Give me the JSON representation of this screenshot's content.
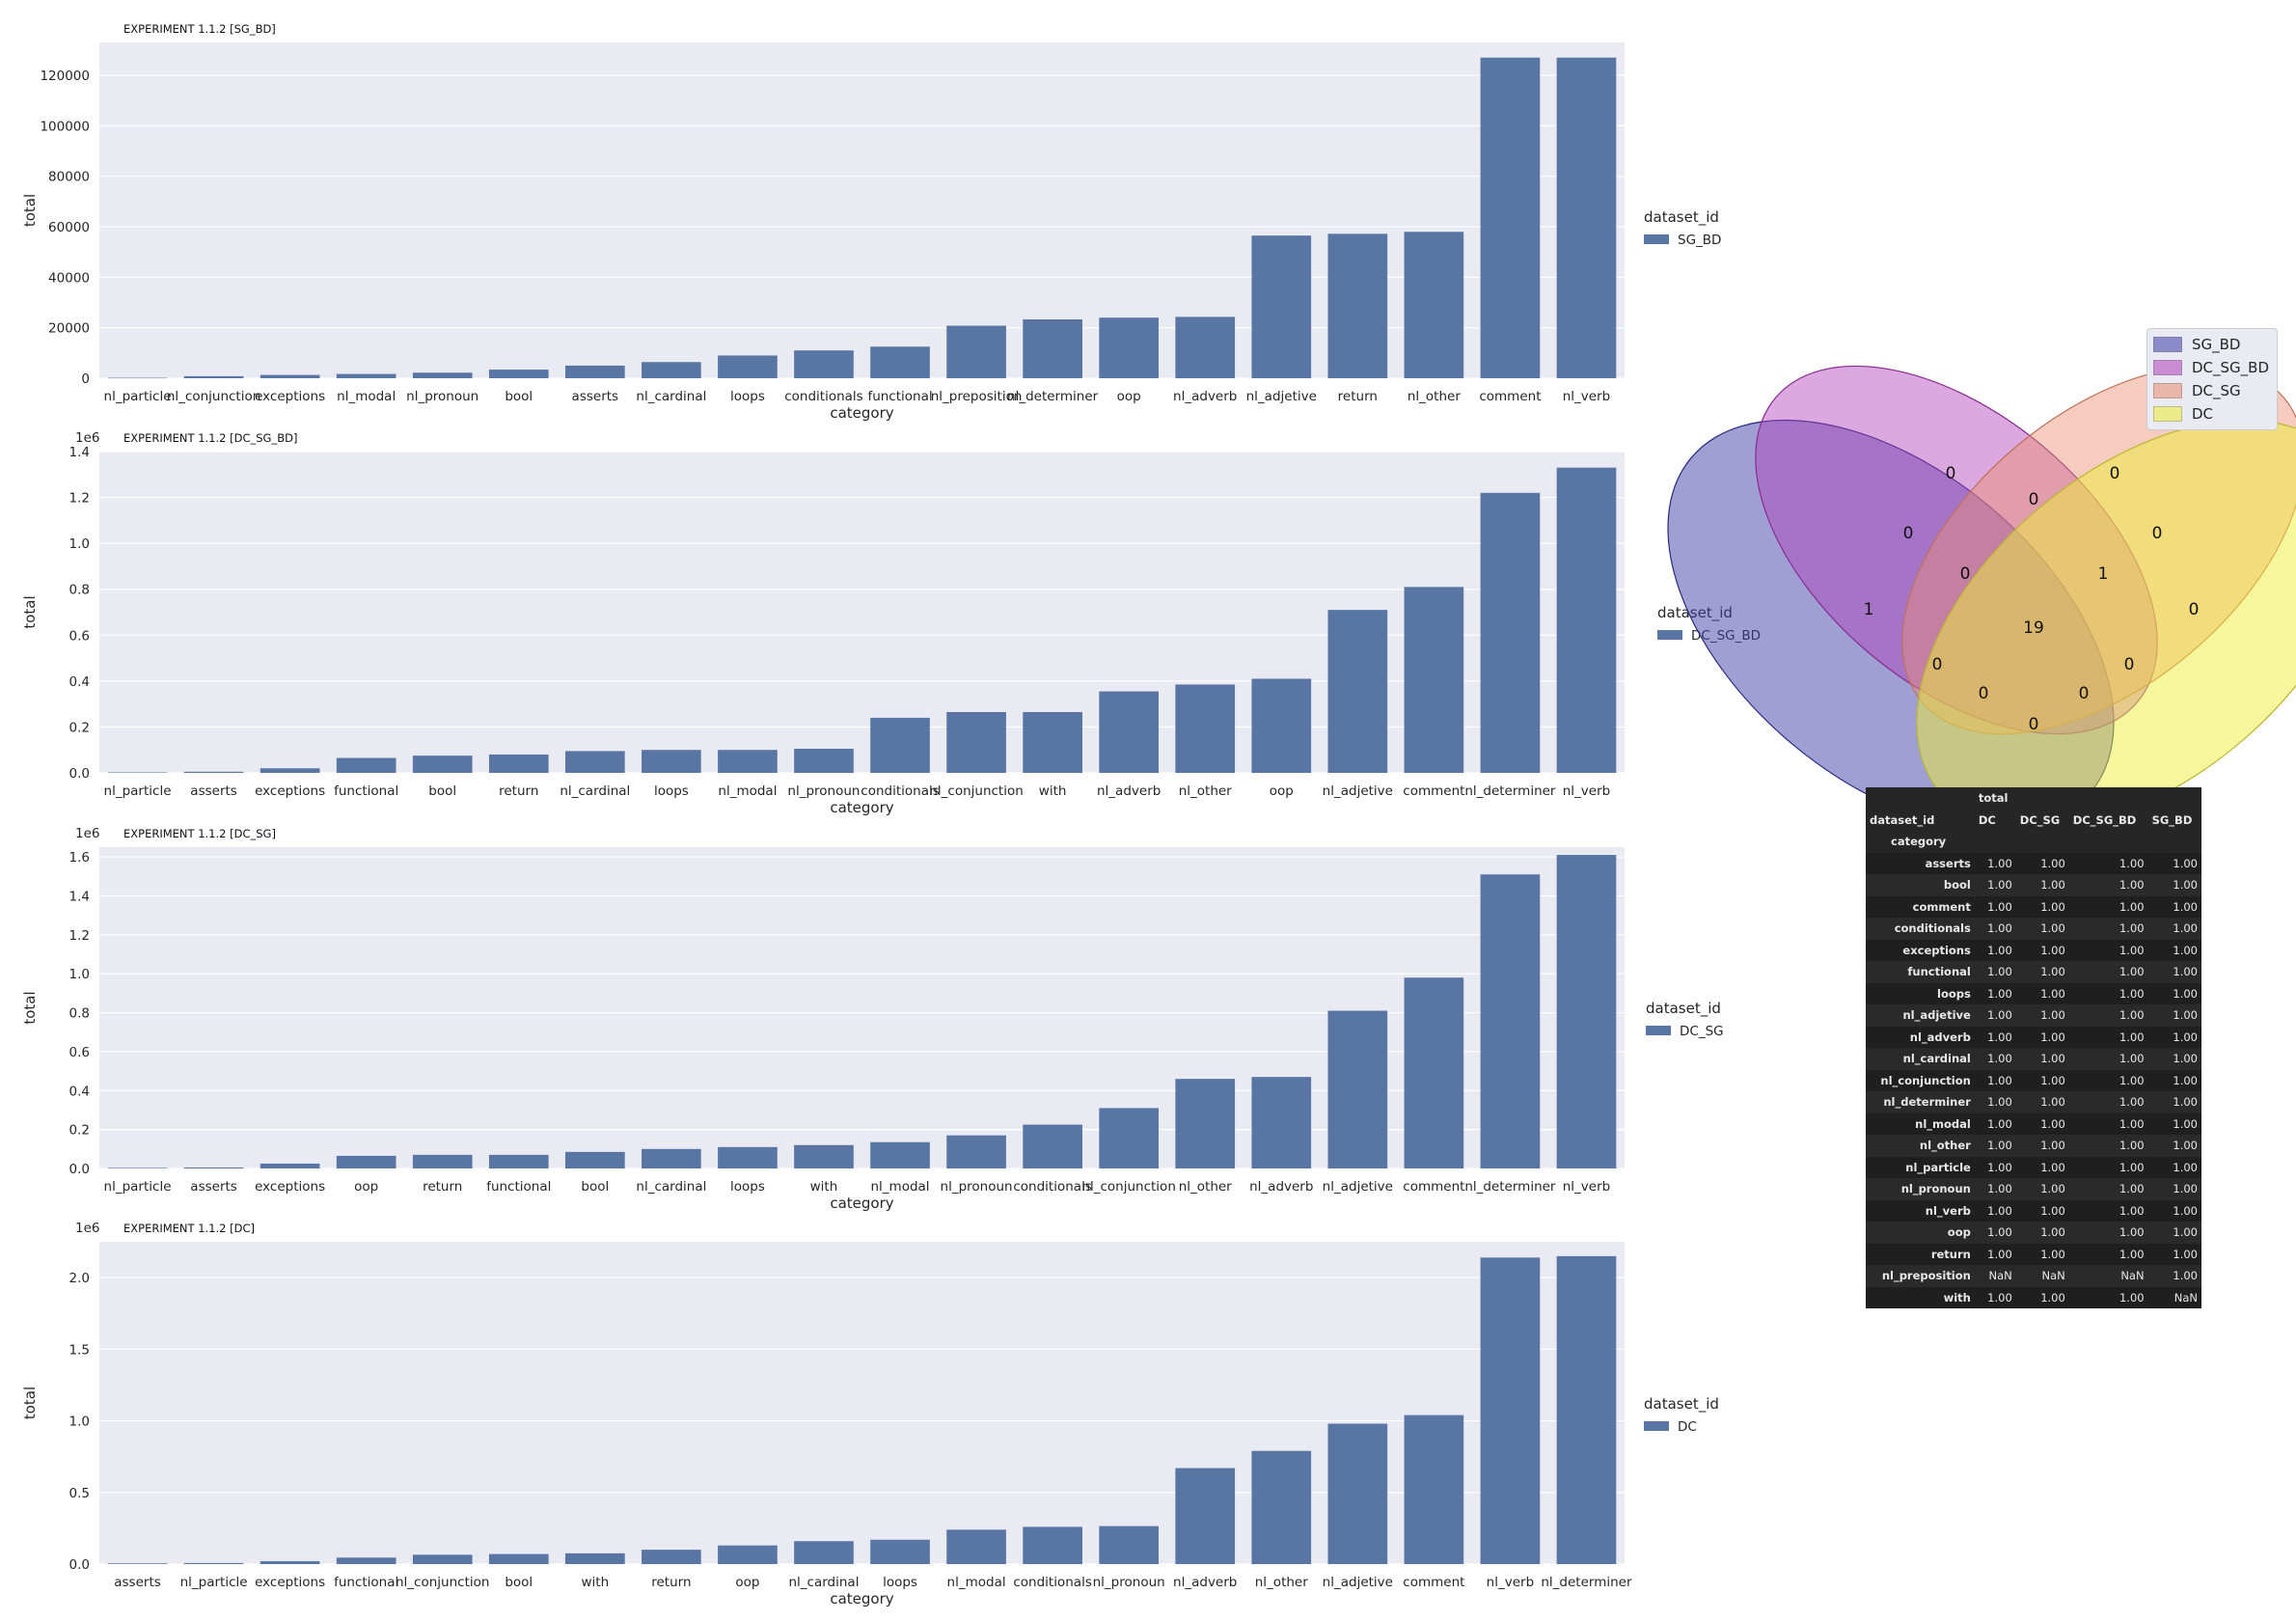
{
  "chart_data": [
    {
      "type": "bar",
      "title": "EXPERIMENT 1.1.2 [SG_BD]",
      "xlabel": "category",
      "ylabel": "total",
      "scale_label": "",
      "ylim": [
        0,
        133000
      ],
      "yticks": [
        0,
        20000,
        40000,
        60000,
        80000,
        100000,
        120000
      ],
      "yticklabels": [
        "0",
        "20000",
        "40000",
        "60000",
        "80000",
        "100000",
        "120000"
      ],
      "grid": true,
      "legend": {
        "title": "dataset_id",
        "entries": [
          "SG_BD"
        ],
        "placement": "outside-right"
      },
      "categories": [
        "nl_particle",
        "nl_conjunction",
        "exceptions",
        "nl_modal",
        "nl_pronoun",
        "bool",
        "asserts",
        "nl_cardinal",
        "loops",
        "conditionals",
        "functional",
        "nl_preposition",
        "nl_determiner",
        "oop",
        "nl_adverb",
        "nl_adjetive",
        "return",
        "nl_other",
        "comment",
        "nl_verb"
      ],
      "values": [
        150,
        800,
        1300,
        1700,
        2200,
        3400,
        5000,
        6400,
        9000,
        11000,
        12500,
        20800,
        23300,
        24000,
        24300,
        56500,
        57200,
        58000,
        127000,
        127000
      ]
    },
    {
      "type": "bar",
      "title": "EXPERIMENT 1.1.2 [DC_SG_BD]",
      "xlabel": "category",
      "ylabel": "total",
      "scale_label": "1e6",
      "ylim": [
        0,
        1.4
      ],
      "yticks": [
        0,
        0.2,
        0.4,
        0.6,
        0.8,
        1.0,
        1.2,
        1.4
      ],
      "yticklabels": [
        "0.0",
        "0.2",
        "0.4",
        "0.6",
        "0.8",
        "1.0",
        "1.2",
        "1.4"
      ],
      "grid": true,
      "legend": {
        "title": "dataset_id",
        "entries": [
          "DC_SG_BD"
        ],
        "placement": "outside-right"
      },
      "categories": [
        "nl_particle",
        "asserts",
        "exceptions",
        "functional",
        "bool",
        "return",
        "nl_cardinal",
        "loops",
        "nl_modal",
        "nl_pronoun",
        "conditionals",
        "nl_conjunction",
        "with",
        "nl_adverb",
        "nl_other",
        "oop",
        "nl_adjetive",
        "comment",
        "nl_determiner",
        "nl_verb"
      ],
      "values": [
        0.002,
        0.005,
        0.02,
        0.065,
        0.075,
        0.08,
        0.095,
        0.1,
        0.1,
        0.105,
        0.24,
        0.265,
        0.265,
        0.355,
        0.385,
        0.41,
        0.71,
        0.81,
        1.22,
        1.33
      ]
    },
    {
      "type": "bar",
      "title": "EXPERIMENT 1.1.2 [DC_SG]",
      "xlabel": "category",
      "ylabel": "total",
      "scale_label": "1e6",
      "ylim": [
        0,
        1.65
      ],
      "yticks": [
        0,
        0.2,
        0.4,
        0.6,
        0.8,
        1.0,
        1.2,
        1.4,
        1.6
      ],
      "yticklabels": [
        "0.0",
        "0.2",
        "0.4",
        "0.6",
        "0.8",
        "1.0",
        "1.2",
        "1.4",
        "1.6"
      ],
      "grid": true,
      "legend": {
        "title": "dataset_id",
        "entries": [
          "DC_SG"
        ],
        "placement": "outside-right"
      },
      "categories": [
        "nl_particle",
        "asserts",
        "exceptions",
        "oop",
        "return",
        "functional",
        "bool",
        "nl_cardinal",
        "loops",
        "with",
        "nl_modal",
        "nl_pronoun",
        "conditionals",
        "nl_conjunction",
        "nl_other",
        "nl_adverb",
        "nl_adjetive",
        "comment",
        "nl_determiner",
        "nl_verb"
      ],
      "values": [
        0.003,
        0.005,
        0.025,
        0.065,
        0.07,
        0.07,
        0.085,
        0.1,
        0.11,
        0.12,
        0.135,
        0.17,
        0.225,
        0.31,
        0.46,
        0.47,
        0.81,
        0.98,
        1.51,
        1.61
      ]
    },
    {
      "type": "bar",
      "title": "EXPERIMENT 1.1.2 [DC]",
      "xlabel": "category",
      "ylabel": "total",
      "scale_label": "1e6",
      "ylim": [
        0,
        2.25
      ],
      "yticks": [
        0,
        0.5,
        1.0,
        1.5,
        2.0
      ],
      "yticklabels": [
        "0.0",
        "0.5",
        "1.0",
        "1.5",
        "2.0"
      ],
      "grid": true,
      "legend": {
        "title": "dataset_id",
        "entries": [
          "DC"
        ],
        "placement": "outside-right"
      },
      "categories": [
        "asserts",
        "nl_particle",
        "exceptions",
        "functional",
        "nl_conjunction",
        "bool",
        "with",
        "return",
        "oop",
        "nl_cardinal",
        "loops",
        "nl_modal",
        "conditionals",
        "nl_pronoun",
        "nl_adverb",
        "nl_other",
        "nl_adjetive",
        "comment",
        "nl_verb",
        "nl_determiner"
      ],
      "values": [
        0.005,
        0.007,
        0.02,
        0.045,
        0.065,
        0.07,
        0.075,
        0.1,
        0.13,
        0.16,
        0.17,
        0.24,
        0.26,
        0.265,
        0.67,
        0.79,
        0.98,
        1.04,
        2.14,
        2.15
      ]
    }
  ],
  "venn": {
    "legend": [
      {
        "label": "SG_BD",
        "color": "#3f3fa8"
      },
      {
        "label": "DC_SG_BD",
        "color": "#b040b8"
      },
      {
        "label": "DC_SG",
        "color": "#ec8f70"
      },
      {
        "label": "DC",
        "color": "#eded3a"
      }
    ],
    "region_counts": [
      "0",
      "0",
      "0",
      "0",
      "0",
      "1",
      "0",
      "1",
      "19",
      "0",
      "0",
      "0",
      "0",
      "0",
      "0"
    ]
  },
  "table": {
    "group_header": "total",
    "index_name": "dataset_id",
    "row_index_name": "category",
    "columns": [
      "DC",
      "DC_SG",
      "DC_SG_BD",
      "SG_BD"
    ],
    "rows": [
      {
        "label": "asserts",
        "cells": [
          "1.00",
          "1.00",
          "1.00",
          "1.00"
        ]
      },
      {
        "label": "bool",
        "cells": [
          "1.00",
          "1.00",
          "1.00",
          "1.00"
        ]
      },
      {
        "label": "comment",
        "cells": [
          "1.00",
          "1.00",
          "1.00",
          "1.00"
        ]
      },
      {
        "label": "conditionals",
        "cells": [
          "1.00",
          "1.00",
          "1.00",
          "1.00"
        ]
      },
      {
        "label": "exceptions",
        "cells": [
          "1.00",
          "1.00",
          "1.00",
          "1.00"
        ]
      },
      {
        "label": "functional",
        "cells": [
          "1.00",
          "1.00",
          "1.00",
          "1.00"
        ]
      },
      {
        "label": "loops",
        "cells": [
          "1.00",
          "1.00",
          "1.00",
          "1.00"
        ]
      },
      {
        "label": "nl_adjetive",
        "cells": [
          "1.00",
          "1.00",
          "1.00",
          "1.00"
        ]
      },
      {
        "label": "nl_adverb",
        "cells": [
          "1.00",
          "1.00",
          "1.00",
          "1.00"
        ]
      },
      {
        "label": "nl_cardinal",
        "cells": [
          "1.00",
          "1.00",
          "1.00",
          "1.00"
        ]
      },
      {
        "label": "nl_conjunction",
        "cells": [
          "1.00",
          "1.00",
          "1.00",
          "1.00"
        ]
      },
      {
        "label": "nl_determiner",
        "cells": [
          "1.00",
          "1.00",
          "1.00",
          "1.00"
        ]
      },
      {
        "label": "nl_modal",
        "cells": [
          "1.00",
          "1.00",
          "1.00",
          "1.00"
        ]
      },
      {
        "label": "nl_other",
        "cells": [
          "1.00",
          "1.00",
          "1.00",
          "1.00"
        ]
      },
      {
        "label": "nl_particle",
        "cells": [
          "1.00",
          "1.00",
          "1.00",
          "1.00"
        ]
      },
      {
        "label": "nl_pronoun",
        "cells": [
          "1.00",
          "1.00",
          "1.00",
          "1.00"
        ]
      },
      {
        "label": "nl_verb",
        "cells": [
          "1.00",
          "1.00",
          "1.00",
          "1.00"
        ]
      },
      {
        "label": "oop",
        "cells": [
          "1.00",
          "1.00",
          "1.00",
          "1.00"
        ]
      },
      {
        "label": "return",
        "cells": [
          "1.00",
          "1.00",
          "1.00",
          "1.00"
        ]
      },
      {
        "label": "nl_preposition",
        "cells": [
          "NaN",
          "NaN",
          "NaN",
          "1.00"
        ]
      },
      {
        "label": "with",
        "cells": [
          "1.00",
          "1.00",
          "1.00",
          "NaN"
        ]
      }
    ]
  }
}
